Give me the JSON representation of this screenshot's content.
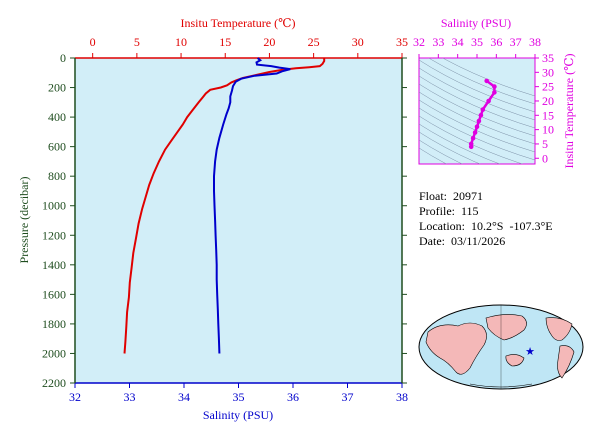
{
  "colors": {
    "temperature": "#e00000",
    "salinity": "#0000cc",
    "inset": "#e000e0",
    "pressure_axis": "#1f4d1f",
    "panel_bg": "#d2eef8"
  },
  "chart_data": [
    {
      "type": "line",
      "top_axis": {
        "title": "Insitu Temperature (℃)",
        "ticks": [
          "0",
          "5",
          "10",
          "15",
          "20",
          "25",
          "30",
          "35"
        ],
        "range": [
          -2,
          35
        ]
      },
      "bottom_axis": {
        "title": "Salinity (PSU)",
        "ticks": [
          "32",
          "33",
          "34",
          "35",
          "36",
          "37",
          "38"
        ],
        "range": [
          32,
          38
        ]
      },
      "left_axis": {
        "title": "Pressure (decibar)",
        "ticks": [
          "0",
          "200",
          "400",
          "600",
          "800",
          "1000",
          "1200",
          "1400",
          "1600",
          "1800",
          "2000",
          "2200"
        ],
        "range": [
          0,
          2200
        ],
        "inverted": true
      },
      "series": [
        {
          "quantity": "temperature",
          "axis": "top",
          "points": [
            [
              26.2,
              0
            ],
            [
              26.2,
              20
            ],
            [
              26.0,
              40
            ],
            [
              25.7,
              55
            ],
            [
              24.5,
              62
            ],
            [
              23.0,
              70
            ],
            [
              21.5,
              80
            ],
            [
              20.0,
              95
            ],
            [
              18.5,
              115
            ],
            [
              17.0,
              135
            ],
            [
              16.3,
              150
            ],
            [
              15.7,
              165
            ],
            [
              15.2,
              185
            ],
            [
              14.5,
              200
            ],
            [
              13.3,
              215
            ],
            [
              12.8,
              240
            ],
            [
              12.4,
              270
            ],
            [
              12.0,
              300
            ],
            [
              11.6,
              330
            ],
            [
              11.2,
              360
            ],
            [
              10.7,
              400
            ],
            [
              10.2,
              450
            ],
            [
              9.6,
              500
            ],
            [
              8.9,
              560
            ],
            [
              8.2,
              620
            ],
            [
              7.5,
              700
            ],
            [
              6.9,
              780
            ],
            [
              6.4,
              860
            ],
            [
              6.0,
              940
            ],
            [
              5.6,
              1020
            ],
            [
              5.2,
              1120
            ],
            [
              4.9,
              1220
            ],
            [
              4.6,
              1320
            ],
            [
              4.4,
              1420
            ],
            [
              4.2,
              1520
            ],
            [
              4.1,
              1620
            ],
            [
              3.9,
              1720
            ],
            [
              3.8,
              1820
            ],
            [
              3.7,
              1920
            ],
            [
              3.6,
              2000
            ]
          ]
        },
        {
          "quantity": "salinity",
          "axis": "bottom",
          "points": [
            [
              35.35,
              0
            ],
            [
              35.4,
              15
            ],
            [
              35.33,
              30
            ],
            [
              35.34,
              45
            ],
            [
              35.6,
              55
            ],
            [
              35.75,
              65
            ],
            [
              35.95,
              75
            ],
            [
              35.8,
              90
            ],
            [
              35.7,
              105
            ],
            [
              35.3,
              120
            ],
            [
              35.05,
              140
            ],
            [
              34.95,
              160
            ],
            [
              34.9,
              190
            ],
            [
              34.88,
              220
            ],
            [
              34.85,
              260
            ],
            [
              34.85,
              300
            ],
            [
              34.82,
              340
            ],
            [
              34.78,
              380
            ],
            [
              34.72,
              450
            ],
            [
              34.65,
              540
            ],
            [
              34.6,
              620
            ],
            [
              34.57,
              700
            ],
            [
              34.55,
              800
            ],
            [
              34.55,
              900
            ],
            [
              34.56,
              1000
            ],
            [
              34.57,
              1100
            ],
            [
              34.58,
              1200
            ],
            [
              34.59,
              1300
            ],
            [
              34.6,
              1400
            ],
            [
              34.6,
              1500
            ],
            [
              34.61,
              1600
            ],
            [
              34.62,
              1700
            ],
            [
              34.63,
              1800
            ],
            [
              34.64,
              1900
            ],
            [
              34.65,
              2000
            ]
          ]
        }
      ]
    },
    {
      "type": "scatter",
      "top_axis": {
        "title": "Salinity (PSU)",
        "ticks": [
          "32",
          "33",
          "34",
          "35",
          "36",
          "37",
          "38"
        ],
        "range": [
          32,
          38
        ]
      },
      "right_axis": {
        "title": "Insitu Temperature (℃)",
        "ticks": [
          "0",
          "5",
          "10",
          "15",
          "20",
          "25",
          "30",
          "35"
        ],
        "range": [
          -2,
          35
        ]
      },
      "points": [
        [
          35.5,
          27
        ],
        [
          35.9,
          25
        ],
        [
          35.9,
          23
        ],
        [
          35.6,
          20
        ],
        [
          35.3,
          17
        ],
        [
          35.2,
          15
        ],
        [
          35.1,
          13
        ],
        [
          35.0,
          11
        ],
        [
          34.9,
          9
        ],
        [
          34.8,
          7
        ],
        [
          34.7,
          5
        ],
        [
          34.7,
          4
        ]
      ]
    }
  ],
  "float_info": {
    "float_label": "Float:",
    "float_value": "20971",
    "profile_label": "Profile:",
    "profile_value": "115",
    "location_label": "Location:",
    "location_value": "10.2°S  -107.3°E",
    "date_label": "Date:",
    "date_value": "03/11/2026"
  },
  "map": {
    "marker": "float-location-star"
  }
}
